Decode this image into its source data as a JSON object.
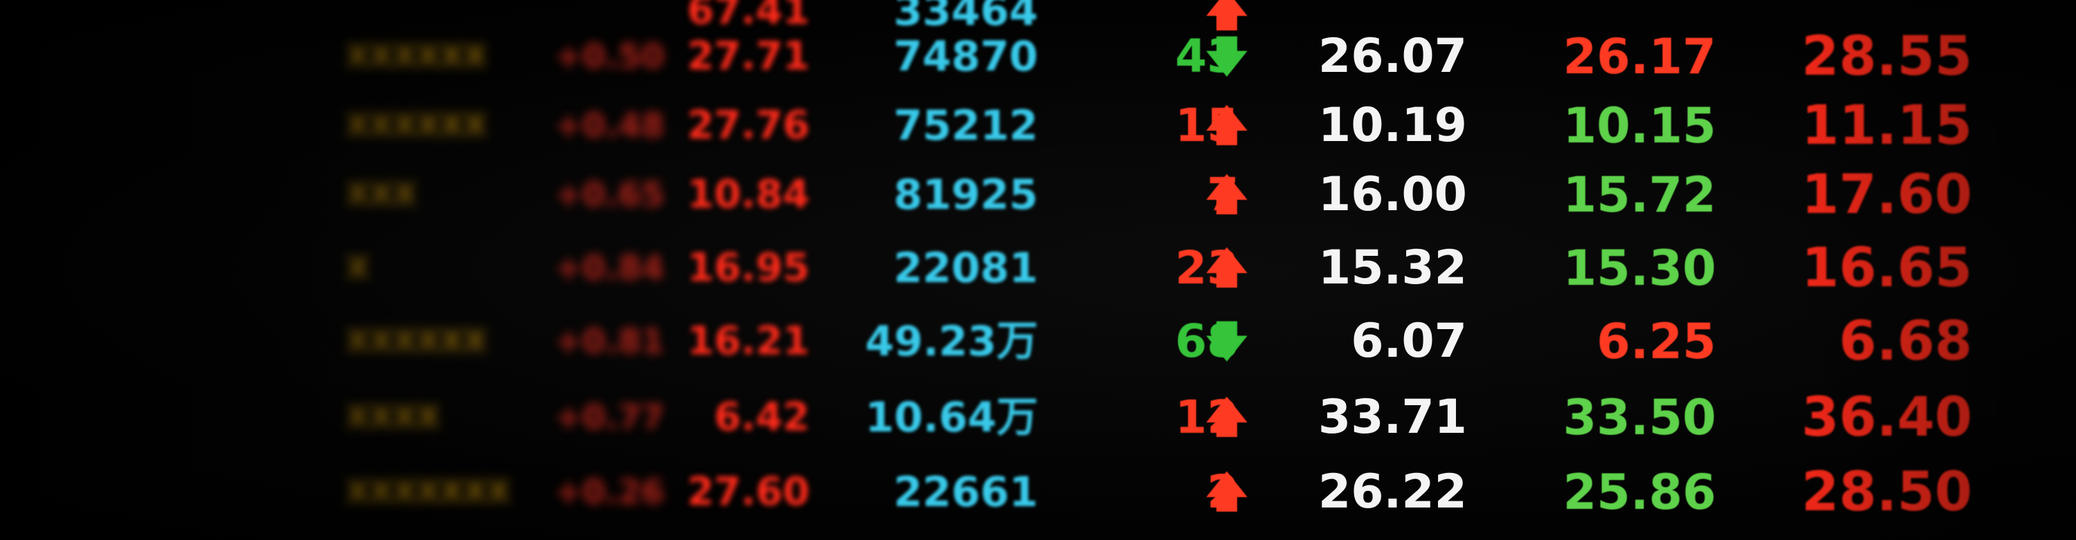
{
  "board": {
    "rows": [
      {
        "name": "",
        "code": "",
        "change": "",
        "price": "67.41",
        "volume": "33464",
        "count": "",
        "dir": "up",
        "open": "",
        "high": "",
        "high_color": "red",
        "low": ""
      },
      {
        "name": "",
        "code": "XXXXXX",
        "change": "+0.50",
        "price": "27.71",
        "volume": "74870",
        "count": "43",
        "dir": "down",
        "open": "26.07",
        "high": "26.17",
        "high_color": "red",
        "low": "28.55"
      },
      {
        "name": "",
        "code": "XXXXXX",
        "change": "+0.48",
        "price": "27.76",
        "volume": "75212",
        "count": "15",
        "dir": "up",
        "open": "10.19",
        "high": "10.15",
        "high_color": "green",
        "low": "11.15"
      },
      {
        "name": "",
        "code": "XXX",
        "change": "+0.65",
        "price": "10.84",
        "volume": "81925",
        "count": "7",
        "dir": "up",
        "open": "16.00",
        "high": "15.72",
        "high_color": "green",
        "low": "17.60"
      },
      {
        "name": "",
        "code": "X",
        "change": "+0.84",
        "price": "16.95",
        "volume": "22081",
        "count": "23",
        "dir": "up",
        "open": "15.32",
        "high": "15.30",
        "high_color": "green",
        "low": "16.65"
      },
      {
        "name": "",
        "code": "XXXXXX",
        "change": "+0.81",
        "price": "16.21",
        "volume": "49.23万",
        "count": "68",
        "dir": "down",
        "open": "6.07",
        "high": "6.25",
        "high_color": "red",
        "low": "6.68"
      },
      {
        "name": "",
        "code": "XXXX",
        "change": "+0.77",
        "price": "6.42",
        "volume": "10.64万",
        "count": "12",
        "dir": "up",
        "open": "33.71",
        "high": "33.50",
        "high_color": "green",
        "low": "36.40"
      },
      {
        "name": "",
        "code": "XXXXXXX",
        "change": "+0.26",
        "price": "27.60",
        "volume": "22661",
        "count": "2",
        "dir": "up",
        "open": "26.22",
        "high": "25.86",
        "high_color": "green",
        "low": "28.50"
      }
    ],
    "arrow_up": "🡅",
    "arrow_down": "🡇",
    "colors": {
      "up": "#ff3a22",
      "down": "#35c43a",
      "volume": "#38c8e8",
      "open": "#f4f4f4"
    }
  }
}
